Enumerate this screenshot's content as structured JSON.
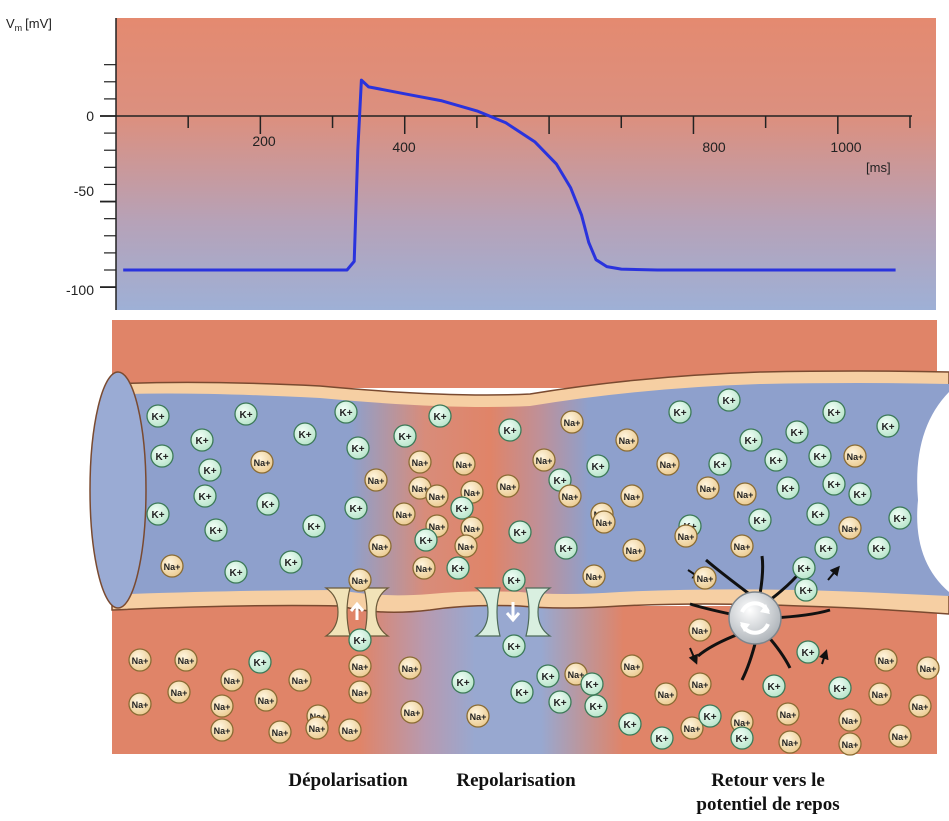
{
  "chart": {
    "y_unit": "V",
    "y_unit_sub": "m",
    "y_unit_suffix": "[mV]",
    "x_unit": "[ms]",
    "y_ticks": [
      "0",
      "-50",
      "-100"
    ],
    "x_ticks": [
      "200",
      "400",
      "800",
      "1000"
    ],
    "colors": {
      "top": "#e48a70",
      "bottom": "#9eb0d6",
      "trace": "#2a33dd",
      "axis": "#222222"
    }
  },
  "chart_data": {
    "type": "line",
    "title": "",
    "xlabel": "[ms]",
    "ylabel": "Vm [mV]",
    "xlim": [
      0,
      1100
    ],
    "ylim": [
      -105,
      35
    ],
    "series": [
      {
        "x": [
          10,
          250,
          320,
          330,
          335,
          340,
          350,
          400,
          450,
          500,
          540,
          580,
          610,
          630,
          645,
          655,
          665,
          680,
          700,
          750,
          1080
        ],
        "values": [
          -90,
          -90,
          -90,
          -85,
          -20,
          21,
          17,
          13,
          9,
          3,
          -4,
          -15,
          -28,
          -42,
          -58,
          -74,
          -84,
          -88,
          -89.5,
          -90,
          -90
        ]
      }
    ],
    "grid": false
  },
  "diagram": {
    "ions": {
      "k_label": "K",
      "na_label": "Na",
      "charge": "+"
    },
    "colors": {
      "cyto": "#8ea0cc",
      "extra": "#e08468",
      "membrane": "#f6cfa3",
      "k_ion": "#cfeedd",
      "na_ion": "#f6deb0"
    }
  },
  "labels": {
    "depol": "Dépolarisation",
    "repol": "Repolarisation",
    "retour_line1": "Retour vers le",
    "retour_line2": "potentiel de repos"
  }
}
